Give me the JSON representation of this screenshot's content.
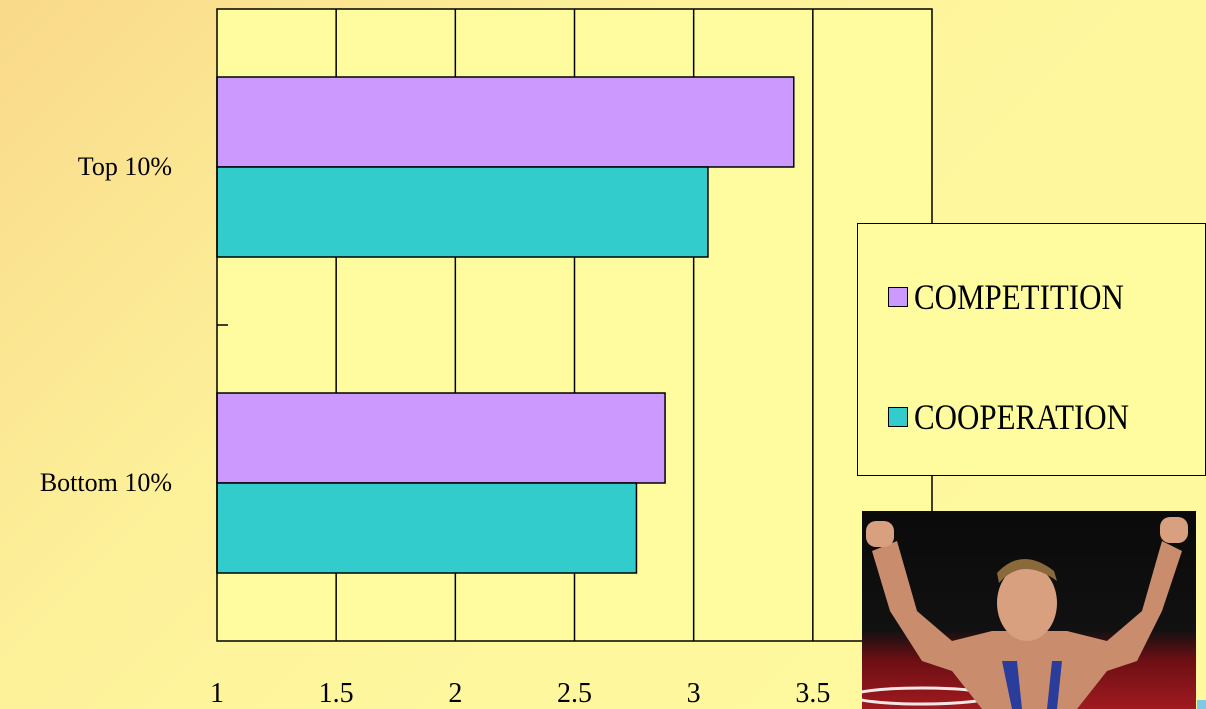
{
  "chart_data": {
    "type": "bar",
    "orientation": "horizontal",
    "categories": [
      "Top 10%",
      "Bottom 10%"
    ],
    "series": [
      {
        "name": "COMPETITION",
        "color": "#cc99ff",
        "values": [
          3.42,
          2.88
        ]
      },
      {
        "name": "COOPERATION",
        "color": "#33cccc",
        "values": [
          3.06,
          2.76
        ]
      }
    ],
    "xlim": [
      1,
      4
    ],
    "xticks": [
      "1",
      "1.5",
      "2",
      "2.5",
      "3",
      "3.5"
    ],
    "grid": true,
    "legend_position": "right"
  },
  "legend": {
    "items": [
      {
        "label": "COMPETITION",
        "color": "#cc99ff"
      },
      {
        "label": "COOPERATION",
        "color": "#33cccc"
      }
    ]
  },
  "photo": {
    "icon": "celebrating-wrestler-photo"
  }
}
